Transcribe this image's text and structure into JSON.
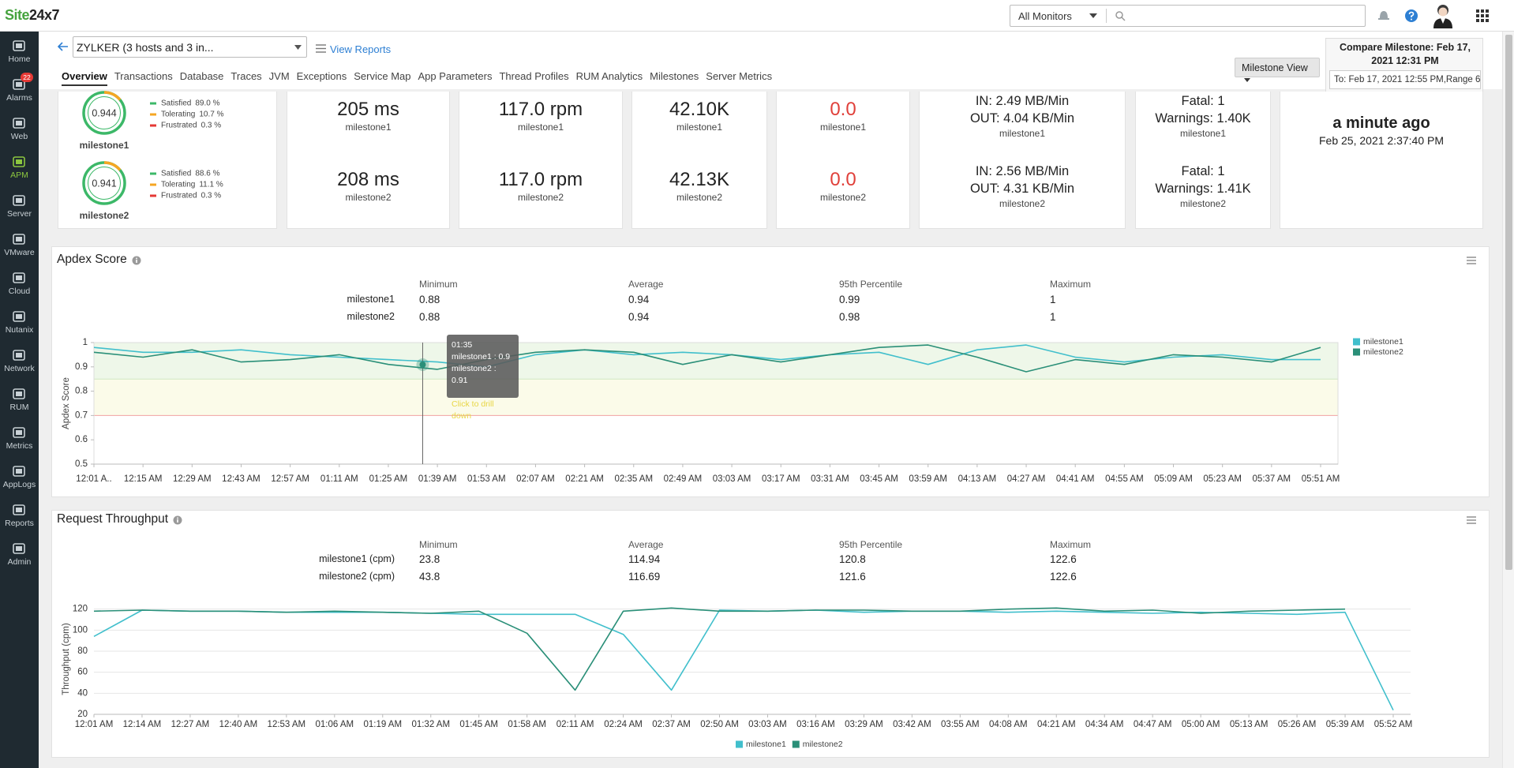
{
  "header": {
    "logo_a": "Site",
    "logo_b": "24x7",
    "monitor_filter": "All Monitors"
  },
  "sidebar": [
    {
      "label": "Home"
    },
    {
      "label": "Alarms",
      "badge": 22
    },
    {
      "label": "Web"
    },
    {
      "label": "APM",
      "active": true
    },
    {
      "label": "Server"
    },
    {
      "label": "VMware"
    },
    {
      "label": "Cloud"
    },
    {
      "label": "Nutanix"
    },
    {
      "label": "Network"
    },
    {
      "label": "RUM"
    },
    {
      "label": "Metrics"
    },
    {
      "label": "AppLogs"
    },
    {
      "label": "Reports"
    },
    {
      "label": "Admin"
    }
  ],
  "monitor": {
    "name": "ZYLKER (3 hosts and 3 in...",
    "view_reports": "View Reports"
  },
  "tabs": [
    {
      "label": "Overview",
      "active": true
    },
    {
      "label": "Transactions"
    },
    {
      "label": "Database"
    },
    {
      "label": "Traces"
    },
    {
      "label": "JVM"
    },
    {
      "label": "Exceptions"
    },
    {
      "label": "Service Map"
    },
    {
      "label": "App Parameters"
    },
    {
      "label": "Thread Profiles"
    },
    {
      "label": "RUM Analytics"
    },
    {
      "label": "Milestones"
    },
    {
      "label": "Server Metrics"
    }
  ],
  "milestone_view": "Milestone View",
  "compare": {
    "from": "Compare Milestone: Feb 17, 2021 12:31 PM",
    "to": "To: Feb 17, 2021 12:55 PM,Range 6"
  },
  "apdex_summary": [
    {
      "score": "0.944",
      "name": "milestone1",
      "items": [
        {
          "label": "Satisfied",
          "value": "89.0 %",
          "color": "#3cb868"
        },
        {
          "label": "Tolerating",
          "value": "10.7 %",
          "color": "#f5a623"
        },
        {
          "label": "Frustrated",
          "value": "0.3 %",
          "color": "#e53935"
        }
      ]
    },
    {
      "score": "0.941",
      "name": "milestone2",
      "items": [
        {
          "label": "Satisfied",
          "value": "88.6 %",
          "color": "#3cb868"
        },
        {
          "label": "Tolerating",
          "value": "11.1 %",
          "color": "#f5a623"
        },
        {
          "label": "Frustrated",
          "value": "0.3 %",
          "color": "#e53935"
        }
      ]
    }
  ],
  "cards": [
    {
      "rows": [
        {
          "lines": [
            "205 ms"
          ],
          "name": "milestone1"
        },
        {
          "lines": [
            "208 ms"
          ],
          "name": "milestone2"
        }
      ]
    },
    {
      "rows": [
        {
          "lines": [
            "117.0 rpm"
          ],
          "name": "milestone1"
        },
        {
          "lines": [
            "117.0 rpm"
          ],
          "name": "milestone2"
        }
      ]
    },
    {
      "rows": [
        {
          "lines": [
            "42.10K"
          ],
          "name": "milestone1"
        },
        {
          "lines": [
            "42.13K"
          ],
          "name": "milestone2"
        }
      ]
    },
    {
      "color": "#e0403a",
      "rows": [
        {
          "lines": [
            "0.0"
          ],
          "name": "milestone1"
        },
        {
          "lines": [
            "0.0"
          ],
          "name": "milestone2"
        }
      ]
    },
    {
      "rows": [
        {
          "lines": [
            "IN: 2.49 MB/Min",
            "OUT: 4.04 KB/Min"
          ],
          "name": "milestone1"
        },
        {
          "lines": [
            "IN: 2.56 MB/Min",
            "OUT: 4.31 KB/Min"
          ],
          "name": "milestone2"
        }
      ]
    },
    {
      "rows": [
        {
          "lines": [
            "Fatal: 1",
            "Warnings: 1.40K"
          ],
          "name": "milestone1"
        },
        {
          "lines": [
            "Fatal: 1",
            "Warnings: 1.41K"
          ],
          "name": "milestone2"
        }
      ]
    },
    {
      "rows": [
        {
          "lines": [
            "a minute ago",
            "Feb 25, 2021 2:37:40 PM"
          ]
        }
      ]
    }
  ],
  "apdex_panel": {
    "title": "Apdex Score",
    "columns": [
      "Minimum",
      "Average",
      "95th Percentile",
      "Maximum"
    ],
    "rows": [
      {
        "name": "milestone1",
        "cells": [
          "0.88",
          "0.94",
          "0.99",
          "1"
        ]
      },
      {
        "name": "milestone2",
        "cells": [
          "0.88",
          "0.94",
          "0.98",
          "1"
        ]
      }
    ],
    "tooltip": {
      "time": "01:35",
      "lines": [
        "milestone1 : 0.9",
        "milestone2 : 0.91"
      ],
      "action": "Click to drill down"
    }
  },
  "throughput_panel": {
    "title": "Request Throughput",
    "columns": [
      "Minimum",
      "Average",
      "95th Percentile",
      "Maximum"
    ],
    "rows": [
      {
        "name": "milestone1 (cpm)",
        "cells": [
          "23.8",
          "114.94",
          "120.8",
          "122.6"
        ]
      },
      {
        "name": "milestone2 (cpm)",
        "cells": [
          "43.8",
          "116.69",
          "121.6",
          "122.6"
        ]
      }
    ]
  },
  "chart_data": [
    {
      "type": "line",
      "y_label": "Apdex Score",
      "categories": [
        "12:01 A..",
        "12:15 AM",
        "12:29 AM",
        "12:43 AM",
        "12:57 AM",
        "01:11 AM",
        "01:25 AM",
        "01:39 AM",
        "01:53 AM",
        "02:07 AM",
        "02:21 AM",
        "02:35 AM",
        "02:49 AM",
        "03:03 AM",
        "03:17 AM",
        "03:31 AM",
        "03:45 AM",
        "03:59 AM",
        "04:13 AM",
        "04:27 AM",
        "04:41 AM",
        "04:55 AM",
        "05:09 AM",
        "05:23 AM",
        "05:37 AM",
        "05:51 AM"
      ],
      "series": [
        {
          "name": "milestone1",
          "color": "#41bfcc",
          "values": [
            0.98,
            0.96,
            0.96,
            0.97,
            0.95,
            0.94,
            0.93,
            0.92,
            0.9,
            0.95,
            0.97,
            0.95,
            0.96,
            0.95,
            0.93,
            0.95,
            0.96,
            0.91,
            0.97,
            0.99,
            0.94,
            0.92,
            0.94,
            0.95,
            0.93,
            0.93
          ]
        },
        {
          "name": "milestone2",
          "color": "#2a8f78",
          "values": [
            0.96,
            0.94,
            0.97,
            0.92,
            0.93,
            0.95,
            0.91,
            0.89,
            0.93,
            0.96,
            0.97,
            0.96,
            0.91,
            0.95,
            0.92,
            0.95,
            0.98,
            0.99,
            0.94,
            0.88,
            0.93,
            0.91,
            0.95,
            0.94,
            0.92,
            0.98
          ]
        }
      ],
      "ylim": [
        0.5,
        1
      ],
      "yticks": [
        0.5,
        0.6,
        0.7,
        0.8,
        0.9,
        1
      ],
      "grid": false,
      "legend": "right"
    },
    {
      "type": "line",
      "y_label": "Throughput (cpm)",
      "categories": [
        "12:01 AM",
        "12:14 AM",
        "12:27 AM",
        "12:40 AM",
        "12:53 AM",
        "01:06 AM",
        "01:19 AM",
        "01:32 AM",
        "01:45 AM",
        "01:58 AM",
        "02:11 AM",
        "02:24 AM",
        "02:37 AM",
        "02:50 AM",
        "03:03 AM",
        "03:16 AM",
        "03:29 AM",
        "03:42 AM",
        "03:55 AM",
        "04:08 AM",
        "04:21 AM",
        "04:34 AM",
        "04:47 AM",
        "05:00 AM",
        "05:13 AM",
        "05:26 AM",
        "05:39 AM",
        "05:52 AM"
      ],
      "series": [
        {
          "name": "milestone1",
          "color": "#41bfcc",
          "values": [
            94,
            119,
            118,
            118,
            117,
            117,
            117,
            116,
            115,
            115,
            115,
            96,
            43,
            119,
            118,
            119,
            117,
            118,
            118,
            117,
            118,
            117,
            116,
            117,
            116,
            115,
            117,
            24
          ]
        },
        {
          "name": "milestone2",
          "color": "#2a8f78",
          "values": [
            118,
            119,
            118,
            118,
            117,
            118,
            117,
            116,
            118,
            97,
            43,
            118,
            121,
            118,
            118,
            119,
            119,
            118,
            118,
            120,
            121,
            118,
            119,
            116,
            118,
            119,
            120,
            null
          ]
        }
      ],
      "ylim": [
        20,
        125
      ],
      "yticks": [
        20,
        40,
        60,
        80,
        100,
        120
      ],
      "grid": true,
      "legend": "bottom"
    }
  ]
}
